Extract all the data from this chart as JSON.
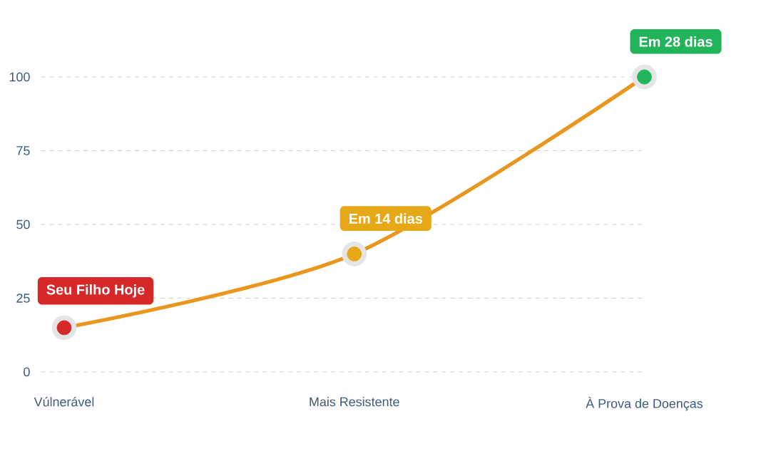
{
  "chart_data": {
    "type": "line",
    "categories": [
      "Vúlnerável",
      "Mais Resistente",
      "À Prova de Doenças"
    ],
    "values": [
      15,
      40,
      100
    ],
    "colors": [
      "#d62828",
      "#e6a817",
      "#22b45a"
    ],
    "color": "#e8961e",
    "ylim": [
      0,
      100
    ],
    "yticks": [
      0,
      25,
      50,
      75,
      100
    ],
    "grid": "y",
    "marker": "circle",
    "annotations": [
      {
        "text": "Seu Filho Hoje",
        "x": "Vúlnerável",
        "y": 15
      },
      {
        "text": "Em 14 dias",
        "x": "Mais Resistente",
        "y": 40
      },
      {
        "text": "Em 28 dias",
        "x": "À Prova de Doenças",
        "y": 100
      }
    ]
  }
}
